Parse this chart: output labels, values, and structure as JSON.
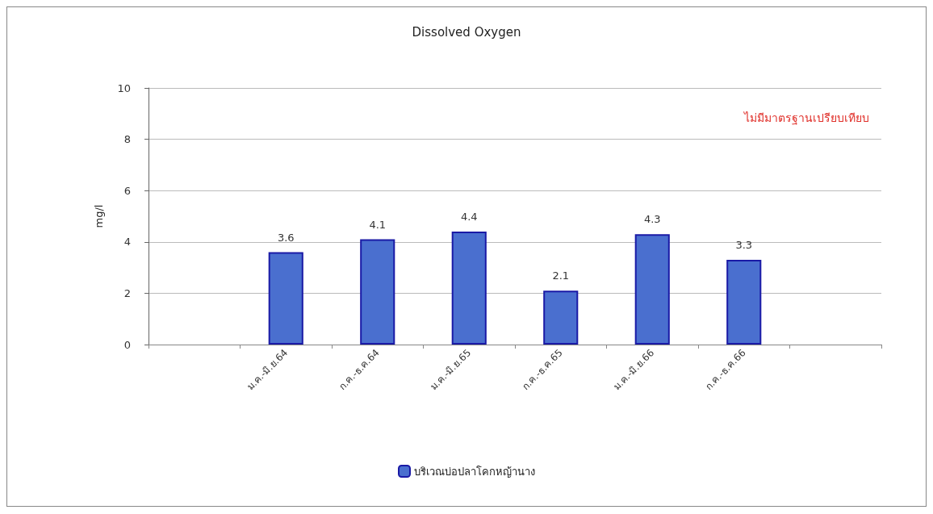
{
  "chart_data": {
    "type": "bar",
    "title": "Dissolved Oxygen",
    "ylabel": "mg/l",
    "categories": [
      null,
      "ม.ค.-มิ.ย.64",
      "ก.ค.-ธ.ค.64",
      "ม.ค.-มิ.ย.65",
      "ก.ค.-ธ.ค.65",
      "ม.ค.-มิ.ย.66",
      "ก.ค.-ธ.ค.66",
      null
    ],
    "series": [
      {
        "name": "บริเวณบ่อปลาโคกหญ้านาง",
        "color": "#4a6fcf",
        "values": [
          null,
          3.6,
          4.1,
          4.4,
          2.1,
          4.3,
          3.3,
          null
        ]
      }
    ],
    "ylim": [
      0,
      10
    ],
    "yticks": [
      0,
      2,
      4,
      6,
      8,
      10
    ],
    "grid": "y",
    "legend": "bottom",
    "data_labels": true,
    "annotations": [
      "ไม่มีมาตรฐานเปรียบเทียบ"
    ]
  }
}
